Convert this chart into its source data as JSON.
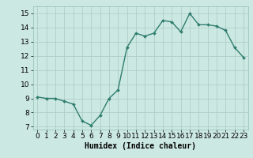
{
  "x": [
    0,
    1,
    2,
    3,
    4,
    5,
    6,
    7,
    8,
    9,
    10,
    11,
    12,
    13,
    14,
    15,
    16,
    17,
    18,
    19,
    20,
    21,
    22,
    23
  ],
  "y": [
    9.1,
    9.0,
    9.0,
    8.8,
    8.6,
    7.4,
    7.1,
    7.8,
    9.0,
    9.6,
    12.6,
    13.6,
    13.4,
    13.6,
    14.5,
    14.4,
    13.7,
    15.0,
    14.2,
    14.2,
    14.1,
    13.8,
    12.6,
    11.9
  ],
  "line_color": "#2e7d6e",
  "marker": "D",
  "marker_size": 2.0,
  "bg_color": "#cce8e2",
  "grid_color": "#b0ceca",
  "xlabel": "Humidex (Indice chaleur)",
  "xlabel_fontsize": 7,
  "tick_fontsize": 6.5,
  "ylim": [
    6.8,
    15.5
  ],
  "xlim": [
    -0.5,
    23.5
  ],
  "yticks": [
    7,
    8,
    9,
    10,
    11,
    12,
    13,
    14,
    15
  ],
  "xticks": [
    0,
    1,
    2,
    3,
    4,
    5,
    6,
    7,
    8,
    9,
    10,
    11,
    12,
    13,
    14,
    15,
    16,
    17,
    18,
    19,
    20,
    21,
    22,
    23
  ],
  "linewidth": 1.0
}
